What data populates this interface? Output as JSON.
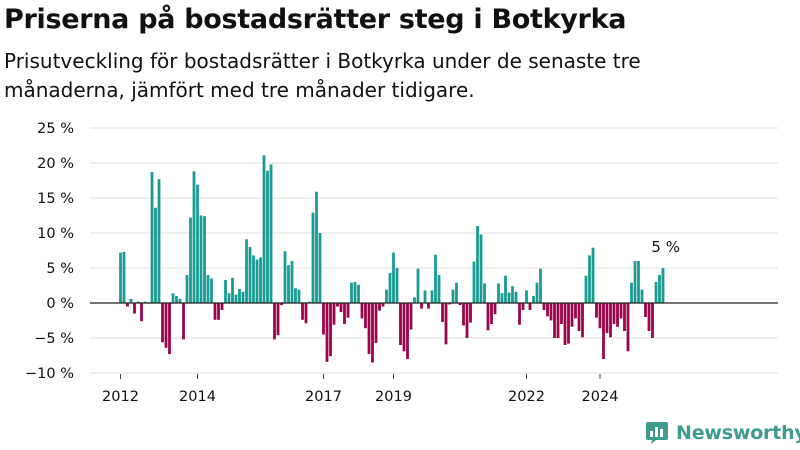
{
  "title": "Priserna på bostadsrätter steg i Botkyrka",
  "subtitle": "Prisutveckling för bostadsrätter i Botkyrka under de senaste tre månaderna, jämfört med tre månader tidigare.",
  "brand": {
    "name": "Newsworthy",
    "icon": "newsworthy-logo-icon",
    "color": "#3e9b8e"
  },
  "chart_data": {
    "type": "bar",
    "title": "Priserna på bostadsrätter steg i Botkyrka",
    "subtitle": "Prisutveckling för bostadsrätter i Botkyrka under de senaste tre månaderna, jämfört med tre månader tidigare.",
    "ylim": [
      -10,
      25
    ],
    "y_ticks": [
      25,
      20,
      15,
      10,
      5,
      0,
      -5,
      -10
    ],
    "y_tick_labels": [
      "25 %",
      "20 %",
      "15 %",
      "10 %",
      "5 %",
      "0 %",
      "−5 %",
      "−10 %"
    ],
    "x_tick_labels": [
      "2012",
      "2014",
      "2017",
      "2019",
      "2022",
      "2024"
    ],
    "x_tick_positions": [
      0,
      22,
      58,
      78,
      116,
      137
    ],
    "grid": true,
    "colors": {
      "positive": "#1a9c94",
      "negative": "#99064a"
    },
    "annotation": "5 %",
    "values": [
      7.2,
      7.3,
      -0.5,
      0.6,
      -1.5,
      0.2,
      -2.6,
      0.2,
      -0.1,
      18.7,
      13.6,
      17.7,
      -5.6,
      -6.4,
      -7.3,
      1.4,
      1.0,
      0.6,
      -5.2,
      4.0,
      12.2,
      18.8,
      16.9,
      12.5,
      12.4,
      4.0,
      3.5,
      -2.4,
      -2.4,
      -1.0,
      3.3,
      1.4,
      3.6,
      1.2,
      2.0,
      1.6,
      9.1,
      8.0,
      6.8,
      6.2,
      6.5,
      21.1,
      18.9,
      19.8,
      -5.2,
      -4.6,
      -0.3,
      7.4,
      5.4,
      6.0,
      2.1,
      1.9,
      -2.4,
      -2.9,
      0.2,
      12.9,
      15.9,
      10.0,
      -4.5,
      -8.4,
      -7.6,
      -3.1,
      -0.5,
      -1.3,
      -3.0,
      -2.1,
      2.9,
      3.0,
      2.6,
      -2.2,
      -3.6,
      -7.3,
      -8.5,
      -5.7,
      -1.1,
      -0.5,
      1.9,
      4.3,
      7.2,
      5.0,
      -6.0,
      -6.9,
      -8.0,
      -3.8,
      0.8,
      4.9,
      -0.8,
      1.8,
      -0.8,
      1.8,
      6.9,
      4.0,
      -2.7,
      -5.9,
      -0.2,
      1.9,
      2.9,
      -0.3,
      -3.2,
      -5.0,
      -2.8,
      5.9,
      11.0,
      9.8,
      2.8,
      -3.9,
      -3.0,
      -1.6,
      2.8,
      1.4,
      3.9,
      1.5,
      2.4,
      1.6,
      -3.1,
      -1.0,
      1.8,
      -1.0,
      1.0,
      2.9,
      4.9,
      -1.0,
      -1.9,
      -2.5,
      -5.0,
      -5.0,
      -3.0,
      -6.0,
      -5.8,
      -3.4,
      -2.2,
      -4.0,
      -4.9,
      3.9,
      6.8,
      7.9,
      -2.1,
      -3.6,
      -8.0,
      -4.3,
      -4.9,
      -3.0,
      -3.4,
      -2.2,
      -4.0,
      -6.9,
      2.9,
      6.0,
      6.0,
      1.9,
      -2.0,
      -4.0,
      -5.0,
      3.0,
      4.0,
      5.0
    ]
  }
}
